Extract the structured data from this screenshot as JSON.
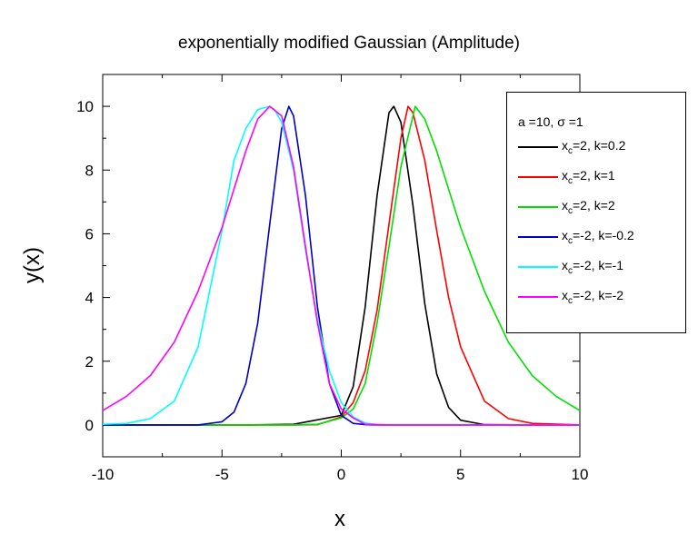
{
  "chart_data": {
    "type": "line",
    "title": "exponentially modified Gaussian (Amplitude)",
    "xlabel": "x",
    "ylabel": "y(x)",
    "xlim": [
      -10,
      10
    ],
    "ylim": [
      -1,
      11
    ],
    "xticks": [
      -10,
      -5,
      0,
      5,
      10
    ],
    "yticks": [
      0,
      2,
      4,
      6,
      8,
      10
    ],
    "grid": false,
    "legend": {
      "placement": "top-right",
      "header": "a =10, σ =1",
      "entries": [
        {
          "prefix": "x",
          "sub": "c",
          "suffix": "=2, k=0.2",
          "color": "#000000"
        },
        {
          "prefix": "x",
          "sub": "c",
          "suffix": "=2, k=1",
          "color": "#ff0000"
        },
        {
          "prefix": "x",
          "sub": "c",
          "suffix": "=2, k=2",
          "color": "#00e000"
        },
        {
          "prefix": "x",
          "sub": "c",
          "suffix": "=-2, k=-0.2",
          "color": "#0000c0"
        },
        {
          "prefix": "x",
          "sub": "c",
          "suffix": "=-2, k=-1",
          "color": "#00ffff"
        },
        {
          "prefix": "x",
          "sub": "c",
          "suffix": "=-2, k=-2",
          "color": "#ff00ff"
        }
      ]
    },
    "series": [
      {
        "color": "#000000",
        "x": [
          -10,
          -4,
          -2,
          0,
          0.5,
          1,
          1.5,
          2,
          2.2,
          2.5,
          3,
          3.5,
          4,
          4.5,
          5,
          6,
          8,
          10
        ],
        "y": [
          0,
          0,
          0.02,
          0.3,
          1.2,
          3.7,
          7.2,
          9.8,
          10,
          9.5,
          6.9,
          3.8,
          1.6,
          0.55,
          0.15,
          0.01,
          0,
          0
        ]
      },
      {
        "color": "#ff0000",
        "x": [
          -10,
          -2,
          -1,
          0,
          0.5,
          1,
          1.5,
          2,
          2.5,
          2.8,
          3,
          3.5,
          4,
          4.5,
          5,
          6,
          7,
          8,
          10
        ],
        "y": [
          0,
          0,
          0.01,
          0.25,
          0.7,
          1.7,
          3.6,
          6.3,
          9,
          10,
          9.8,
          8.3,
          6.1,
          4,
          2.45,
          0.75,
          0.2,
          0.05,
          0
        ]
      },
      {
        "color": "#00e000",
        "x": [
          -10,
          -2,
          -1,
          0,
          0.5,
          1,
          1.5,
          2,
          2.5,
          3.1,
          3.5,
          4,
          4.5,
          5,
          6,
          7,
          8,
          9,
          10
        ],
        "y": [
          0,
          0,
          0.02,
          0.22,
          0.5,
          1.3,
          3.2,
          5.6,
          8.1,
          10,
          9.6,
          8.6,
          7.4,
          6.2,
          4.2,
          2.6,
          1.55,
          0.9,
          0.45
        ]
      },
      {
        "color": "#0000c0",
        "x": [
          -10,
          -6,
          -5,
          -4.5,
          -4,
          -3.5,
          -3,
          -2.5,
          -2.2,
          -2,
          -1.5,
          -1,
          -0.5,
          0,
          0.5,
          1,
          1.5,
          2,
          4,
          10
        ],
        "y": [
          0,
          0,
          0.1,
          0.4,
          1.3,
          3.2,
          6.3,
          9.3,
          10,
          9.7,
          7.2,
          3.7,
          1.3,
          0.3,
          0.05,
          0.01,
          0,
          0,
          0,
          0
        ]
      },
      {
        "color": "#00ffff",
        "x": [
          -10,
          -9,
          -8,
          -7,
          -6,
          -5,
          -4.5,
          -4,
          -3.5,
          -3,
          -2.8,
          -2.5,
          -2,
          -1.5,
          -1,
          -0.5,
          0,
          0.5,
          1,
          1.5,
          2,
          10
        ],
        "y": [
          0.02,
          0.05,
          0.2,
          0.75,
          2.45,
          6.1,
          8.3,
          9.3,
          9.9,
          10,
          9.9,
          9.5,
          8,
          5.5,
          3.3,
          1.7,
          0.7,
          0.25,
          0.06,
          0.01,
          0,
          0
        ]
      },
      {
        "color": "#ff00ff",
        "x": [
          -10,
          -9,
          -8,
          -7,
          -6,
          -5,
          -4.5,
          -4,
          -3.5,
          -3,
          -2.5,
          -2,
          -1.5,
          -1,
          -0.5,
          0,
          0.5,
          1,
          1.5,
          2,
          10
        ],
        "y": [
          0.45,
          0.9,
          1.55,
          2.6,
          4.2,
          6.2,
          7.4,
          8.6,
          9.6,
          10,
          9.7,
          8.1,
          5.6,
          3.2,
          1.3,
          0.5,
          0.22,
          0.02,
          0.01,
          0,
          0
        ]
      }
    ]
  }
}
